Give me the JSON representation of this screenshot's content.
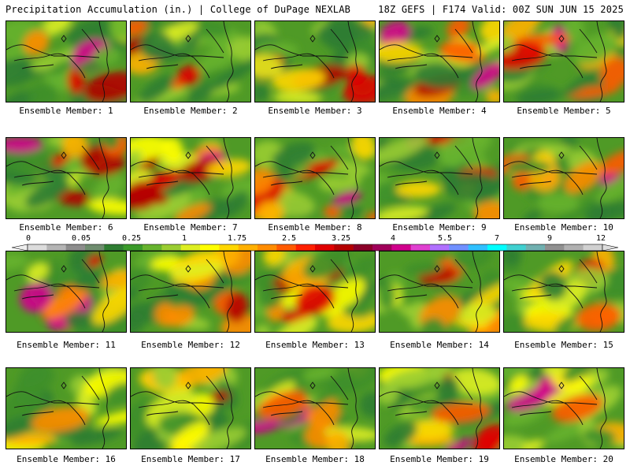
{
  "header": {
    "left": "Precipitation Accumulation (in.) | College of DuPage NEXLAB",
    "right": "18Z GEFS | F174 Valid: 00Z SUN JUN 15 2025"
  },
  "panels": [
    {
      "label": "Ensemble Member: 1"
    },
    {
      "label": "Ensemble Member: 2"
    },
    {
      "label": "Ensemble Member: 3"
    },
    {
      "label": "Ensemble Member: 4"
    },
    {
      "label": "Ensemble Member: 5"
    },
    {
      "label": "Ensemble Member: 6"
    },
    {
      "label": "Ensemble Member: 7"
    },
    {
      "label": "Ensemble Member: 8"
    },
    {
      "label": "Ensemble Member: 9"
    },
    {
      "label": "Ensemble Member: 10"
    },
    {
      "label": "Ensemble Member: 11"
    },
    {
      "label": "Ensemble Member: 12"
    },
    {
      "label": "Ensemble Member: 13"
    },
    {
      "label": "Ensemble Member: 14"
    },
    {
      "label": "Ensemble Member: 15"
    },
    {
      "label": "Ensemble Member: 16"
    },
    {
      "label": "Ensemble Member: 17"
    },
    {
      "label": "Ensemble Member: 18"
    },
    {
      "label": "Ensemble Member: 19"
    },
    {
      "label": "Ensemble Member: 20"
    }
  ],
  "colorbar": {
    "tick_labels": [
      "0",
      "0.05",
      "0.25",
      "1",
      "1.75",
      "2.5",
      "3.25",
      "4",
      "5.5",
      "7",
      "9",
      "12"
    ],
    "colors": [
      "#dcdcdc",
      "#b4b4b4",
      "#8c8c8c",
      "#6e8c6e",
      "#2e7d32",
      "#3a9a2a",
      "#66b32e",
      "#9acd32",
      "#ddee22",
      "#ffff00",
      "#ffd700",
      "#ffb000",
      "#ff8c00",
      "#ff5a00",
      "#ff2000",
      "#e00000",
      "#b40000",
      "#8b0028",
      "#a0005a",
      "#d0008c",
      "#e040d0",
      "#b070ff",
      "#7090ff",
      "#30c0ff",
      "#00ffff",
      "#40d0d0",
      "#70b0b0",
      "#909090",
      "#b0b0b0",
      "#d0d0d0"
    ]
  }
}
